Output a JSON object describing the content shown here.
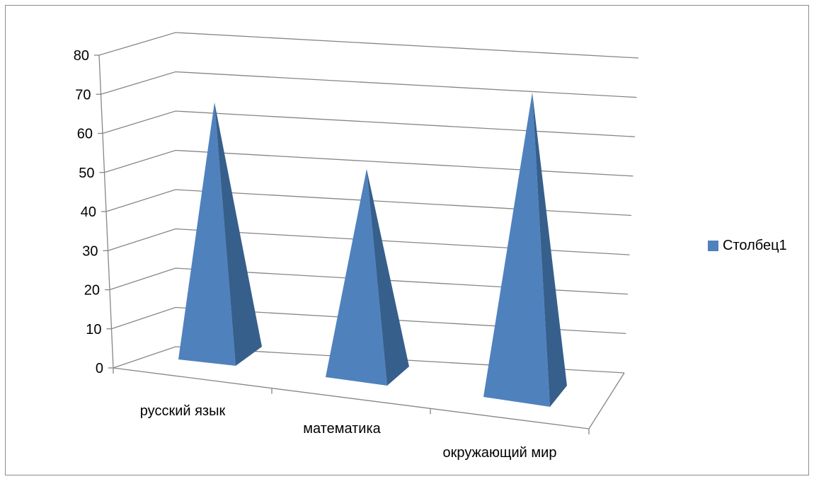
{
  "chart_data": {
    "type": "bar",
    "subtype": "3d-pyramid",
    "categories": [
      "русский язык",
      "математика",
      "окружающий мир"
    ],
    "series": [
      {
        "name": "Столбец1",
        "values": [
          62,
          50,
          75
        ]
      }
    ],
    "yticks": [
      "0",
      "10",
      "20",
      "30",
      "40",
      "50",
      "60",
      "70",
      "80"
    ],
    "ylim": [
      0,
      80
    ],
    "grid": true,
    "legend": "right",
    "colors": {
      "front": "#4f81bd",
      "side": "#365f8c",
      "grid": "#868686"
    }
  }
}
